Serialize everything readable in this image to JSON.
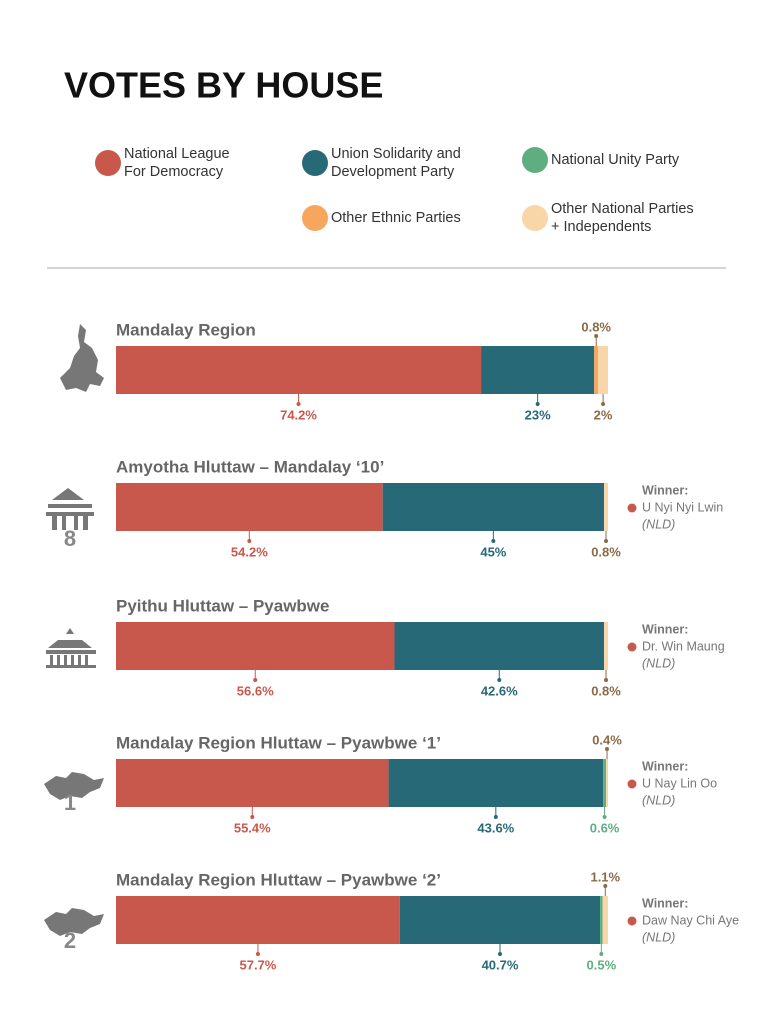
{
  "chart_data": {
    "type": "stacked_bar",
    "title": "VOTES BY HOUSE",
    "legend": [
      {
        "name_lines": [
          "National League",
          "For Democracy"
        ],
        "color": "#c9584c",
        "label_color": "#c9584c"
      },
      {
        "name_lines": [
          "Union Solidarity and",
          "Development Party"
        ],
        "color": "#286977",
        "label_color": "#286977"
      },
      {
        "name_lines": [
          "National Unity Party"
        ],
        "color": "#5fae82",
        "label_color": "#5fae82"
      },
      {
        "name_lines": [
          "Other Ethnic Parties"
        ],
        "color": "#f6a75d",
        "label_color": "#8c6a48"
      },
      {
        "name_lines": [
          "Other National Parties",
          "+ Independents"
        ],
        "color": "#f9d6a8",
        "label_color": "#8c6a48"
      }
    ],
    "rows": [
      {
        "title": "Mandalay Region",
        "values": [
          74.2,
          23,
          null,
          0.8,
          2
        ],
        "value_labels": [
          "74.2%",
          "23%",
          null,
          "0.8%",
          "2%"
        ]
      },
      {
        "title": "Amyotha Hluttaw – Mandalay ‘10’",
        "values": [
          54.2,
          45,
          null,
          null,
          0.8
        ],
        "value_labels": [
          "54.2%",
          "45%",
          null,
          null,
          "0.8%"
        ],
        "icon_label": "8",
        "winner_label": "Winner:",
        "winner": "U Nyi Nyi Lwin",
        "winner_party": "(NLD)"
      },
      {
        "title": "Pyithu Hluttaw – Pyawbwe",
        "values": [
          56.6,
          42.6,
          null,
          null,
          0.8
        ],
        "value_labels": [
          "56.6%",
          "42.6%",
          null,
          null,
          "0.8%"
        ],
        "winner_label": "Winner:",
        "winner": "Dr. Win Maung",
        "winner_party": "(NLD)"
      },
      {
        "title": "Mandalay Region Hluttaw – Pyawbwe ‘1’",
        "values": [
          55.4,
          43.6,
          0.6,
          null,
          0.4
        ],
        "value_labels": [
          "55.4%",
          "43.6%",
          "0.6%",
          null,
          "0.4%"
        ],
        "icon_label": "1",
        "winner_label": "Winner:",
        "winner": "U Nay Lin Oo",
        "winner_party": "(NLD)"
      },
      {
        "title": "Mandalay Region Hluttaw – Pyawbwe ‘2’",
        "values": [
          57.7,
          40.7,
          0.5,
          null,
          1.1
        ],
        "value_labels": [
          "57.7%",
          "40.7%",
          "0.5%",
          null,
          "1.1%"
        ],
        "icon_label": "2",
        "winner_label": "Winner:",
        "winner": "Daw Nay Chi Aye",
        "winner_party": "(NLD)"
      }
    ],
    "xlim": [
      0,
      100
    ]
  }
}
